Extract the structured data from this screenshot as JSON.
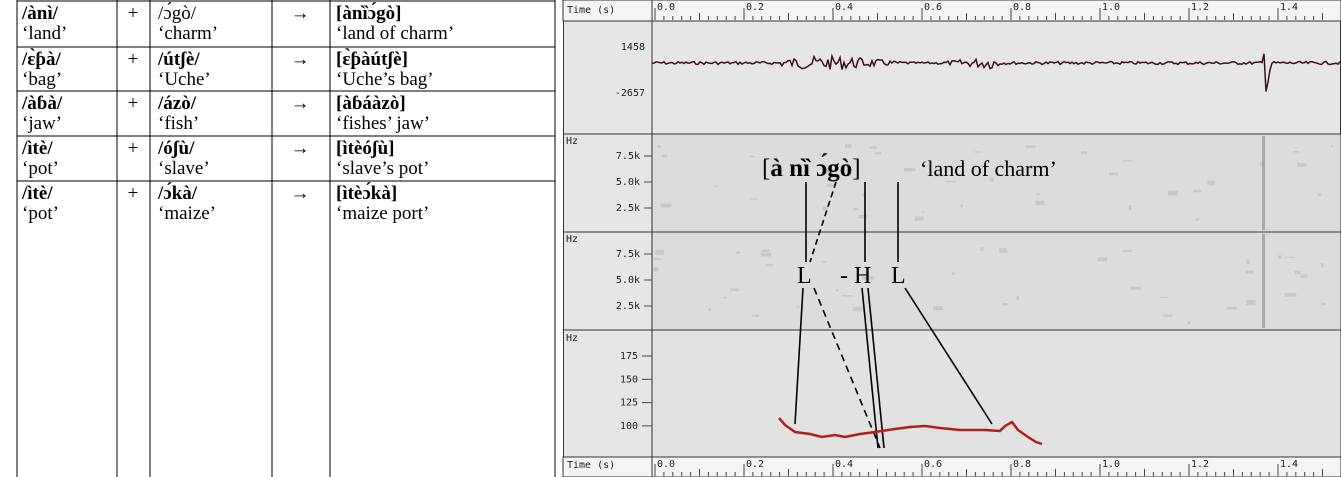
{
  "table": {
    "rows": [
      [
        {
          "form": "/ànì/",
          "gloss": "‘land’"
        },
        "+",
        {
          "form": "/ɔ́gò/",
          "gloss": "‘charm’"
        },
        "→",
        {
          "form": "[ànȉɔ́gò]",
          "gloss": "‘land of charm’"
        }
      ],
      [
        {
          "form": "/ɛ̀ƥà/",
          "gloss": "‘bag’"
        },
        "+",
        {
          "form": "/útʃè/",
          "gloss": "‘Uche’"
        },
        "→",
        {
          "form": "[ɛ̀ƥàútʃè]",
          "gloss": "‘Uche’s bag’"
        }
      ],
      [
        {
          "form": "/àɓà/",
          "gloss": "‘jaw’"
        },
        "+",
        {
          "form": "/ázò/",
          "gloss": "‘fish’"
        },
        "→",
        {
          "form": "[àɓáàzò]",
          "gloss": "‘fishes’ jaw’"
        }
      ],
      [
        {
          "form": "/ìtè/",
          "gloss": "‘pot’"
        },
        "+",
        {
          "form": "/óʃù/",
          "gloss": "‘slave’"
        },
        "→",
        {
          "form": "[ìtèóʃù]",
          "gloss": "‘slave’s pot’"
        }
      ],
      [
        {
          "form": "/ìtè/",
          "gloss": "‘pot’"
        },
        "+",
        {
          "form": "/ɔ́kà/",
          "gloss": "‘maize’"
        },
        "→",
        {
          "form": "[ìtèɔ́kà]",
          "gloss": "‘maize port’"
        }
      ]
    ]
  },
  "figure": {
    "time_label": "Time (s)",
    "time_ticks": [
      "0.0",
      "0.2",
      "0.4",
      "0.6",
      "0.8",
      "1.0",
      "1.2",
      "1.4"
    ],
    "waveform_labels": [
      "1458",
      "-2657"
    ],
    "hz_label": "Hz",
    "spectrogram_ticks": [
      "7.5k",
      "5.0k",
      "2.5k"
    ],
    "pitch_ticks": [
      "175",
      "150",
      "125",
      "100"
    ],
    "transcription": [
      "[",
      "à nȉ ɔ́gò",
      "]"
    ],
    "gloss": "‘land of charm’",
    "tones": [
      "L",
      "- H",
      "L"
    ]
  }
}
